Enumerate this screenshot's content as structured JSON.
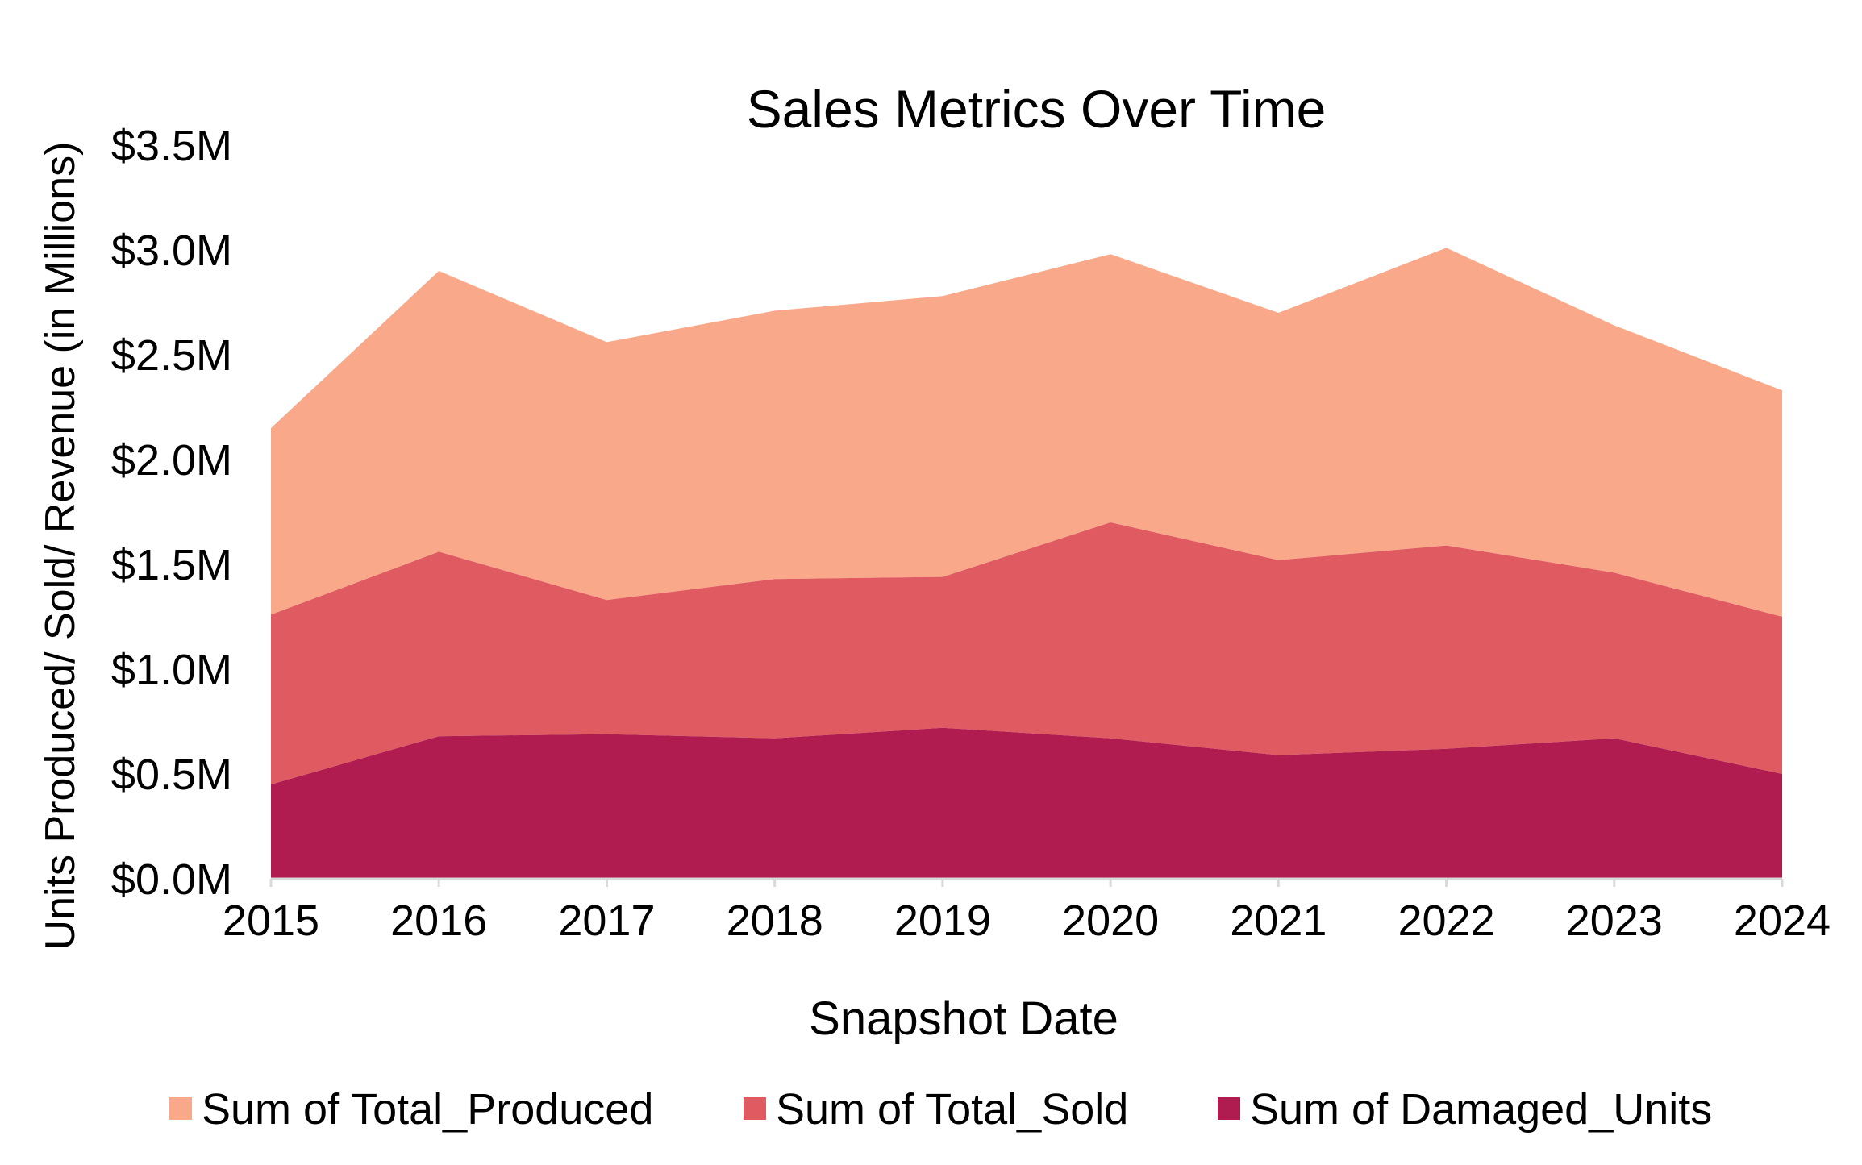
{
  "chart_data": {
    "type": "area",
    "stacked": true,
    "title": "Sales Metrics Over Time",
    "xlabel": "Snapshot Date",
    "ylabel": "Units Produced/ Sold/ Revenue (in  Millions)",
    "categories": [
      "2015",
      "2016",
      "2017",
      "2018",
      "2019",
      "2020",
      "2021",
      "2022",
      "2023",
      "2024"
    ],
    "ylim": [
      0,
      3.5
    ],
    "yticks": [
      0.0,
      0.5,
      1.0,
      1.5,
      2.0,
      2.5,
      3.0,
      3.5
    ],
    "ytick_labels": [
      "$0.0M",
      "$0.5M",
      "$1.0M",
      "$1.5M",
      "$2.0M",
      "$2.5M",
      "$3.0M",
      "$3.5M"
    ],
    "grid": false,
    "legend_position": "bottom",
    "series": [
      {
        "name": "Sum of Total_Produced",
        "color": "#F9A98A",
        "values": [
          0.89,
          1.34,
          1.23,
          1.28,
          1.34,
          1.28,
          1.18,
          1.42,
          1.18,
          1.08
        ]
      },
      {
        "name": "Sum of Total_Sold",
        "color": "#E05A62",
        "values": [
          0.81,
          0.88,
          0.64,
          0.76,
          0.72,
          1.03,
          0.93,
          0.97,
          0.79,
          0.75
        ]
      },
      {
        "name": "Sum of Damaged_Units",
        "color": "#B01C50",
        "values": [
          0.45,
          0.68,
          0.69,
          0.67,
          0.72,
          0.67,
          0.59,
          0.62,
          0.67,
          0.5
        ]
      }
    ]
  }
}
